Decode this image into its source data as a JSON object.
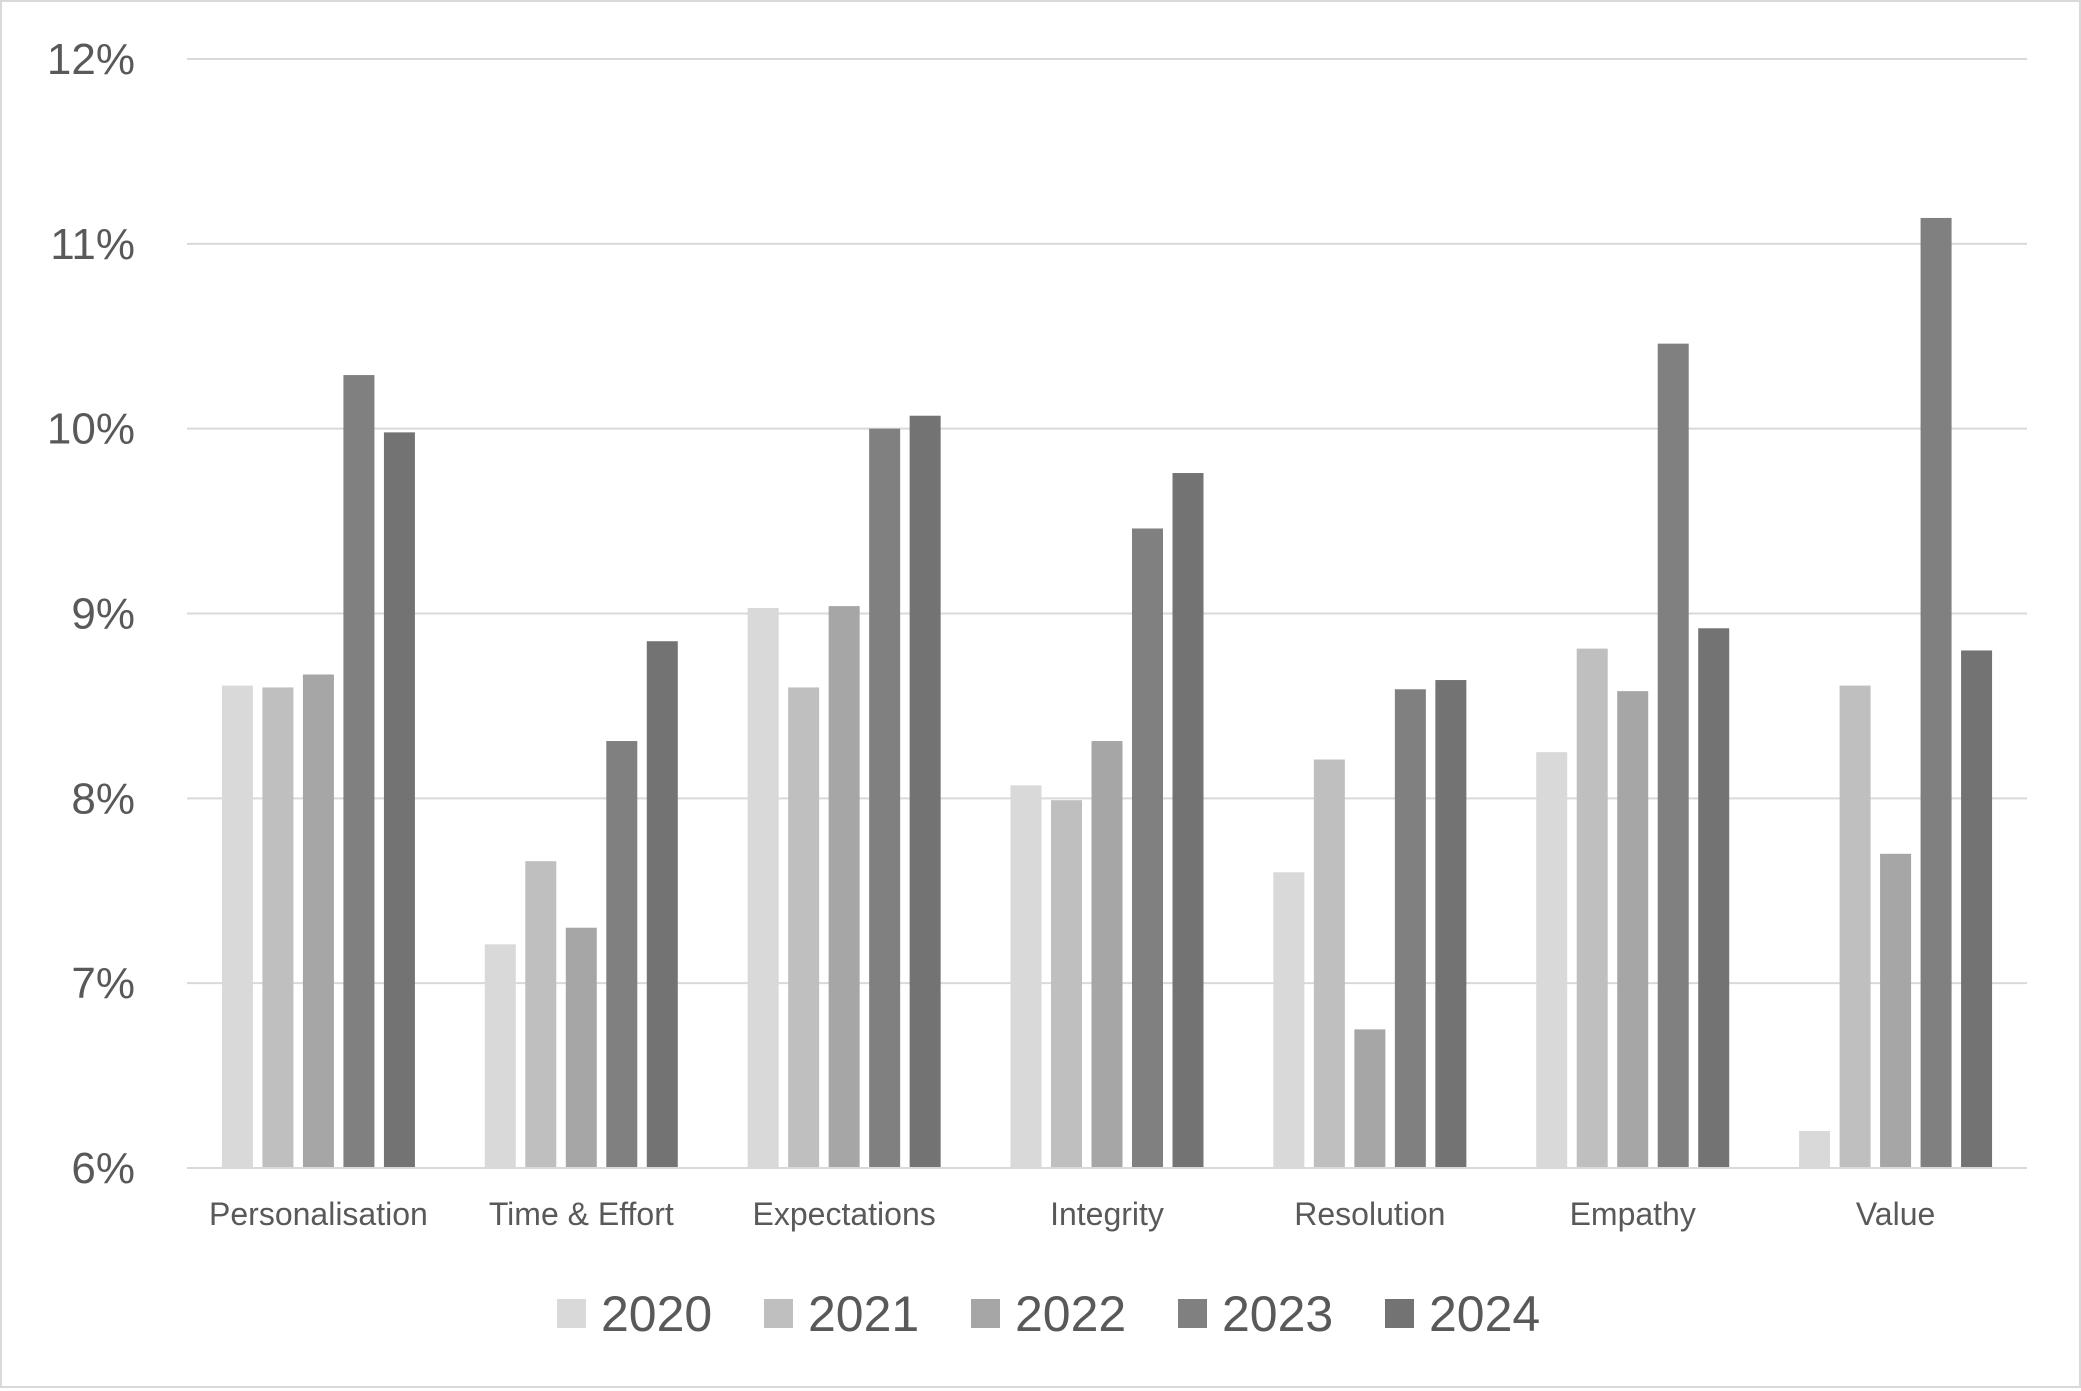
{
  "chart_data": {
    "type": "bar",
    "title": "",
    "xlabel": "",
    "ylabel": "",
    "ylim": [
      6,
      12
    ],
    "yticks": [
      6,
      7,
      8,
      9,
      10,
      11,
      12
    ],
    "ytick_labels": [
      "6%",
      "7%",
      "8%",
      "9%",
      "10%",
      "11%",
      "12%"
    ],
    "grid": true,
    "legend": "bottom",
    "categories": [
      "Personalisation",
      "Time & Effort",
      "Expectations",
      "Integrity",
      "Resolution",
      "Empathy",
      "Value"
    ],
    "series": [
      {
        "name": "2020",
        "color": "#d9d9d9",
        "values": [
          8.61,
          7.21,
          9.03,
          8.07,
          7.6,
          8.25,
          6.2
        ]
      },
      {
        "name": "2021",
        "color": "#bfbfbf",
        "values": [
          8.6,
          7.66,
          8.6,
          7.99,
          8.21,
          8.81,
          8.61
        ]
      },
      {
        "name": "2022",
        "color": "#a6a6a6",
        "values": [
          8.67,
          7.3,
          9.04,
          8.31,
          6.75,
          8.58,
          7.7
        ]
      },
      {
        "name": "2023",
        "color": "#808080",
        "values": [
          10.29,
          8.31,
          10.0,
          9.46,
          8.59,
          10.46,
          11.14
        ]
      },
      {
        "name": "2024",
        "color": "#737373",
        "values": [
          9.98,
          8.85,
          10.07,
          9.76,
          8.64,
          8.92,
          8.8
        ]
      }
    ]
  }
}
